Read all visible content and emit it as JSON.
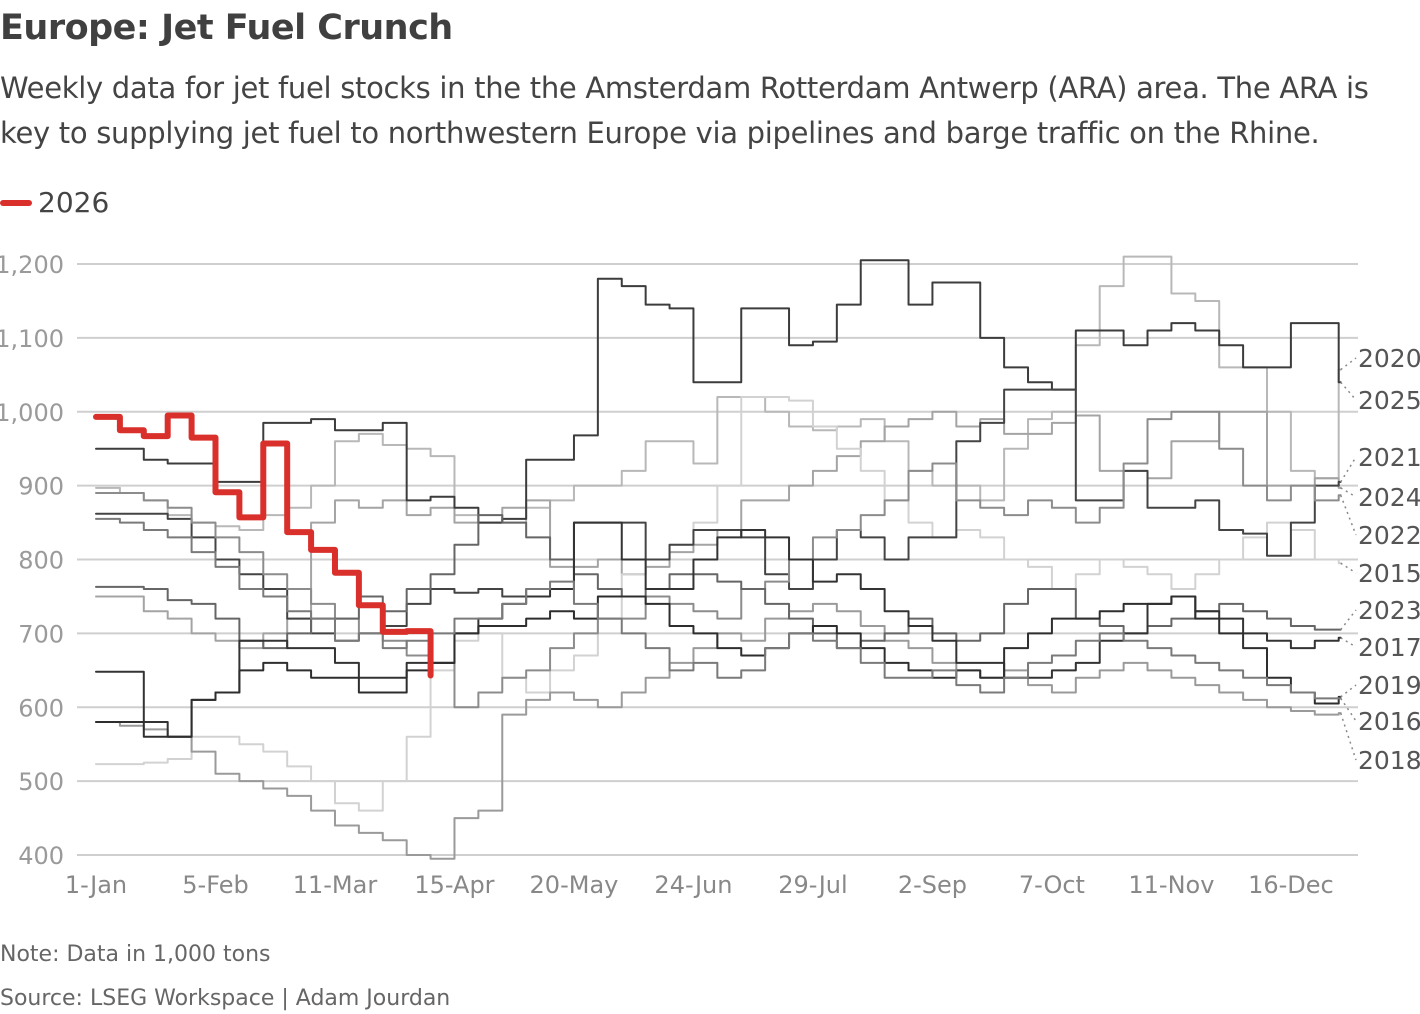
{
  "title": "Europe: Jet Fuel Crunch",
  "subtitle": "Weekly data for jet fuel stocks in the the Amsterdam Rotterdam Antwerp (ARA) area. The ARA is key to supplying jet fuel to northwestern Europe via pipelines and barge traffic on the Rhine.",
  "legend": {
    "label": "2026",
    "color": "#d9302b"
  },
  "note": "Note: Data in 1,000 tons",
  "source": "Source: LSEG Workspace | Adam Jourdan",
  "chart_data": {
    "type": "line",
    "step": true,
    "grid": true,
    "ylim": [
      400,
      1200
    ],
    "yticks": [
      400,
      500,
      600,
      700,
      800,
      900,
      1000,
      1100,
      1200
    ],
    "ytick_labels": [
      "400",
      "500",
      "600",
      "700",
      "800",
      "900",
      "1,000",
      "1,100",
      "1,200"
    ],
    "xtick_labels": [
      "1-Jan",
      "5-Feb",
      "11-Mar",
      "15-Apr",
      "20-May",
      "24-Jun",
      "29-Jul",
      "2-Sep",
      "7-Oct",
      "11-Nov",
      "16-Dec"
    ],
    "x_dates": [
      "1-Jan",
      "8-Jan",
      "15-Jan",
      "22-Jan",
      "29-Jan",
      "5-Feb",
      "12-Feb",
      "19-Feb",
      "26-Feb",
      "5-Mar",
      "12-Mar",
      "19-Mar",
      "26-Mar",
      "2-Apr",
      "9-Apr",
      "16-Apr",
      "23-Apr",
      "30-Apr",
      "7-May",
      "14-May",
      "21-May",
      "28-May",
      "4-Jun",
      "11-Jun",
      "18-Jun",
      "25-Jun",
      "2-Jul",
      "9-Jul",
      "16-Jul",
      "23-Jul",
      "30-Jul",
      "6-Aug",
      "13-Aug",
      "20-Aug",
      "27-Aug",
      "3-Sep",
      "10-Sep",
      "17-Sep",
      "24-Sep",
      "1-Oct",
      "8-Oct",
      "15-Oct",
      "22-Oct",
      "29-Oct",
      "5-Nov",
      "12-Nov",
      "19-Nov",
      "26-Nov",
      "3-Dec",
      "10-Dec",
      "17-Dec",
      "24-Dec",
      "31-Dec"
    ],
    "series": [
      {
        "name": "2020",
        "color": "#b8b8b8",
        "values": [
          897,
          890,
          880,
          860,
          850,
          845,
          840,
          860,
          870,
          900,
          960,
          970,
          955,
          950,
          940,
          860,
          850,
          850,
          870,
          880,
          900,
          900,
          920,
          960,
          960,
          930,
          1020,
          1020,
          1000,
          980,
          975,
          980,
          990,
          960,
          920,
          900,
          900,
          880,
          950,
          990,
          1000,
          1090,
          1170,
          1210,
          1210,
          1160,
          1150,
          1060,
          1060,
          1000,
          920,
          910,
          1057
        ]
      },
      {
        "name": "2025",
        "color": "#3c3c3c",
        "values": [
          950,
          950,
          935,
          930,
          930,
          905,
          905,
          985,
          985,
          990,
          975,
          975,
          985,
          880,
          885,
          870,
          850,
          855,
          935,
          935,
          968,
          1180,
          1170,
          1145,
          1140,
          1040,
          1040,
          1140,
          1140,
          1090,
          1095,
          1145,
          1205,
          1205,
          1145,
          1175,
          1175,
          1100,
          1060,
          1040,
          1030,
          1110,
          1110,
          1090,
          1110,
          1120,
          1110,
          1090,
          1060,
          1060,
          1120,
          1120,
          1040
        ]
      },
      {
        "name": "2021",
        "color": "#444444",
        "values": [
          862,
          862,
          862,
          855,
          830,
          800,
          780,
          760,
          720,
          700,
          690,
          700,
          710,
          740,
          760,
          755,
          760,
          750,
          760,
          760,
          850,
          850,
          850,
          800,
          820,
          840,
          840,
          830,
          780,
          760,
          800,
          840,
          830,
          800,
          830,
          830,
          960,
          985,
          1030,
          1030,
          1030,
          880,
          880,
          920,
          870,
          870,
          880,
          840,
          835,
          805,
          850,
          900,
          905
        ]
      },
      {
        "name": "2024",
        "color": "#a4a4a4",
        "values": [
          750,
          750,
          730,
          720,
          700,
          690,
          680,
          700,
          720,
          850,
          880,
          870,
          880,
          860,
          870,
          850,
          850,
          870,
          880,
          790,
          790,
          800,
          780,
          790,
          810,
          820,
          840,
          880,
          880,
          900,
          920,
          940,
          960,
          980,
          990,
          1000,
          980,
          990,
          970,
          970,
          985,
          995,
          920,
          920,
          910,
          960,
          960,
          1000,
          1000,
          900,
          900,
          910,
          897
        ]
      },
      {
        "name": "2022",
        "color": "#8c8c8c",
        "values": [
          890,
          890,
          880,
          870,
          850,
          830,
          810,
          780,
          760,
          740,
          720,
          700,
          690,
          670,
          660,
          600,
          620,
          640,
          650,
          680,
          700,
          720,
          720,
          750,
          740,
          730,
          720,
          760,
          770,
          800,
          830,
          840,
          860,
          880,
          920,
          930,
          880,
          870,
          860,
          880,
          870,
          850,
          870,
          930,
          990,
          1000,
          1000,
          950,
          900,
          880,
          900,
          880,
          887
        ]
      },
      {
        "name": "2015",
        "color": "#d2d2d2",
        "values": [
          523,
          523,
          525,
          530,
          560,
          560,
          550,
          540,
          520,
          500,
          470,
          460,
          500,
          560,
          650,
          690,
          700,
          640,
          620,
          650,
          670,
          720,
          780,
          800,
          820,
          850,
          900,
          1020,
          1020,
          1015,
          980,
          950,
          920,
          880,
          850,
          830,
          840,
          830,
          800,
          790,
          760,
          780,
          800,
          790,
          780,
          760,
          780,
          800,
          830,
          850,
          840,
          800,
          795
        ]
      },
      {
        "name": "2023",
        "color": "#666666",
        "values": [
          763,
          763,
          760,
          745,
          740,
          720,
          690,
          680,
          700,
          720,
          720,
          750,
          730,
          760,
          780,
          820,
          860,
          850,
          830,
          800,
          780,
          760,
          750,
          760,
          780,
          780,
          770,
          760,
          740,
          720,
          700,
          680,
          690,
          700,
          720,
          700,
          690,
          700,
          740,
          760,
          760,
          720,
          710,
          700,
          710,
          720,
          730,
          740,
          730,
          720,
          710,
          705,
          705
        ]
      },
      {
        "name": "2017",
        "color": "#333333",
        "values": [
          648,
          648,
          580,
          560,
          610,
          620,
          690,
          690,
          680,
          680,
          660,
          640,
          640,
          660,
          660,
          700,
          720,
          740,
          750,
          760,
          850,
          850,
          800,
          760,
          760,
          800,
          830,
          840,
          830,
          800,
          770,
          780,
          760,
          730,
          710,
          690,
          660,
          660,
          640,
          640,
          650,
          660,
          690,
          700,
          740,
          750,
          730,
          720,
          700,
          690,
          680,
          690,
          694
        ]
      },
      {
        "name": "2019",
        "color": "#2e2e2e",
        "values": [
          580,
          580,
          560,
          560,
          610,
          620,
          650,
          660,
          650,
          640,
          640,
          620,
          620,
          650,
          660,
          700,
          710,
          710,
          720,
          730,
          720,
          750,
          750,
          740,
          710,
          700,
          680,
          670,
          680,
          700,
          710,
          700,
          680,
          660,
          650,
          640,
          650,
          640,
          680,
          700,
          720,
          720,
          730,
          740,
          740,
          750,
          720,
          700,
          680,
          640,
          620,
          605,
          614
        ]
      },
      {
        "name": "2016",
        "color": "#7a7a7a",
        "values": [
          855,
          850,
          840,
          830,
          810,
          790,
          760,
          750,
          730,
          720,
          690,
          700,
          680,
          690,
          700,
          720,
          720,
          740,
          760,
          770,
          740,
          720,
          700,
          680,
          650,
          660,
          640,
          650,
          680,
          700,
          690,
          680,
          660,
          640,
          640,
          650,
          630,
          620,
          640,
          660,
          670,
          690,
          700,
          690,
          680,
          670,
          660,
          650,
          640,
          630,
          620,
          612,
          612
        ]
      },
      {
        "name": "2018",
        "color": "#9a9a9a",
        "values": [
          580,
          575,
          570,
          560,
          540,
          510,
          500,
          490,
          480,
          460,
          440,
          430,
          420,
          400,
          395,
          450,
          460,
          590,
          610,
          620,
          610,
          600,
          620,
          640,
          660,
          680,
          700,
          690,
          720,
          730,
          740,
          730,
          710,
          690,
          680,
          660,
          650,
          640,
          650,
          630,
          620,
          640,
          650,
          660,
          650,
          640,
          630,
          620,
          610,
          600,
          595,
          590,
          592
        ]
      },
      {
        "name": "2026",
        "color": "#d9302b",
        "highlight": true,
        "values": [
          993,
          975,
          967,
          995,
          965,
          891,
          857,
          957,
          837,
          813,
          782,
          738,
          702,
          703,
          643
        ]
      }
    ]
  }
}
